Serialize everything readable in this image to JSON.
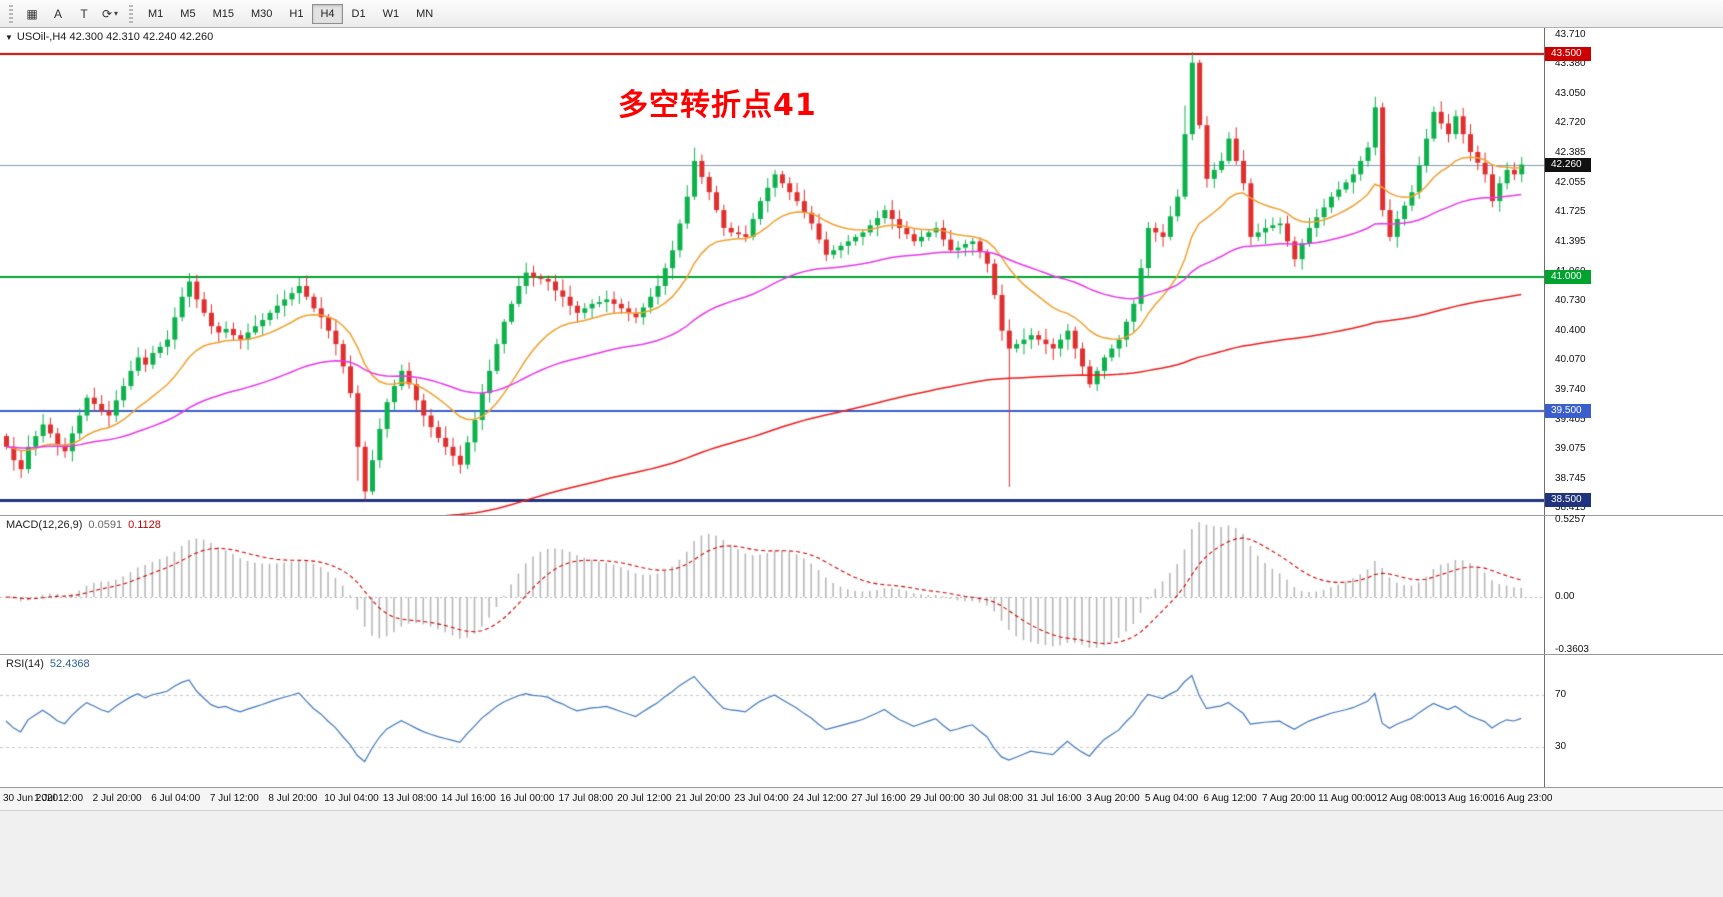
{
  "toolbar": {
    "grid_glyph": "▦",
    "a_label": "A",
    "t_label": "T",
    "cycle_glyph": "⟳",
    "caret_glyph": "▾",
    "timeframes": [
      "M1",
      "M5",
      "M15",
      "M30",
      "H1",
      "H4",
      "D1",
      "W1",
      "MN"
    ],
    "active_timeframe": "H4"
  },
  "chart": {
    "dropdown_glyph": "▼",
    "title": "USOil-,H4 42.300 42.310 42.240 42.260",
    "annotation": "多空转折点41",
    "annotation_color": "#ff0000",
    "price_axis_ticks": [
      "43.710",
      "43.380",
      "43.050",
      "42.720",
      "42.385",
      "42.055",
      "41.725",
      "41.395",
      "41.060",
      "40.730",
      "40.400",
      "40.070",
      "39.740",
      "39.405",
      "39.075",
      "38.745",
      "38.415"
    ],
    "levels": [
      {
        "label": "43.500",
        "price": 43.5,
        "color": "#cc0000",
        "width": 2
      },
      {
        "label": "41.000",
        "price": 41.0,
        "color": "#00a32e",
        "width": 2
      },
      {
        "label": "39.500",
        "price": 39.5,
        "color": "#3a5fcd",
        "width": 2
      },
      {
        "label": "38.500",
        "price": 38.5,
        "color": "#20337f",
        "width": 3
      }
    ],
    "current_price": {
      "label": "42.260",
      "price": 42.26,
      "line_color": "#7f9db9",
      "badge_color": "#111111"
    },
    "candle_up_color": "#0db24d",
    "candle_down_color": "#e02f2f"
  },
  "chart_data": {
    "type": "candlestick",
    "symbol": "USOil-",
    "timeframe": "H4",
    "closes": [
      39.1,
      38.95,
      38.85,
      39.1,
      39.22,
      39.35,
      39.25,
      39.12,
      39.05,
      39.25,
      39.45,
      39.65,
      39.58,
      39.5,
      39.45,
      39.62,
      39.78,
      39.95,
      40.1,
      40.02,
      40.15,
      40.22,
      40.3,
      40.55,
      40.78,
      40.95,
      40.75,
      40.6,
      40.45,
      40.38,
      40.42,
      40.35,
      40.3,
      40.38,
      40.45,
      40.52,
      40.6,
      40.68,
      40.75,
      40.82,
      40.9,
      40.78,
      40.65,
      40.55,
      40.4,
      40.25,
      40.0,
      39.7,
      39.1,
      38.6,
      38.95,
      39.3,
      39.6,
      39.78,
      39.95,
      39.8,
      39.62,
      39.45,
      39.32,
      39.2,
      39.1,
      39.0,
      38.9,
      39.15,
      39.4,
      39.7,
      39.95,
      40.25,
      40.5,
      40.7,
      40.9,
      41.05,
      41.0,
      40.98,
      40.95,
      40.85,
      40.78,
      40.68,
      40.6,
      40.65,
      40.7,
      40.72,
      40.75,
      40.7,
      40.65,
      40.6,
      40.55,
      40.66,
      40.78,
      40.9,
      41.1,
      41.3,
      41.6,
      41.9,
      42.3,
      42.12,
      41.95,
      41.75,
      41.55,
      41.5,
      41.48,
      41.45,
      41.65,
      41.85,
      42.0,
      42.15,
      42.05,
      41.95,
      41.85,
      41.72,
      41.6,
      41.42,
      41.25,
      41.3,
      41.35,
      41.4,
      41.45,
      41.5,
      41.58,
      41.66,
      41.75,
      41.65,
      41.55,
      41.48,
      41.4,
      41.45,
      41.5,
      41.55,
      41.42,
      41.3,
      41.33,
      41.37,
      41.4,
      41.28,
      41.15,
      40.8,
      40.4,
      40.2,
      40.25,
      40.3,
      40.35,
      40.3,
      40.25,
      40.2,
      40.3,
      40.4,
      40.2,
      40.0,
      39.8,
      39.95,
      40.1,
      40.2,
      40.3,
      40.5,
      40.7,
      41.1,
      41.55,
      41.5,
      41.45,
      41.68,
      41.9,
      42.6,
      43.4,
      42.7,
      42.1,
      42.2,
      42.3,
      42.55,
      42.3,
      42.05,
      41.45,
      41.5,
      41.55,
      41.58,
      41.6,
      41.4,
      41.2,
      41.38,
      41.55,
      41.67,
      41.78,
      41.9,
      41.98,
      42.06,
      42.15,
      42.3,
      42.45,
      42.9,
      41.75,
      41.45,
      41.65,
      41.8,
      41.95,
      42.25,
      42.55,
      42.85,
      42.72,
      42.6,
      42.8,
      42.6,
      42.4,
      42.28,
      42.15,
      41.85,
      42.05,
      42.2,
      42.15,
      42.26
    ],
    "wicks": {
      "48": {
        "low": 38.72
      },
      "49": {
        "low": 38.5
      },
      "94": {
        "high": 42.45
      },
      "137": {
        "low": 38.65
      },
      "161": {
        "high": 42.92
      },
      "162": {
        "high": 43.52
      },
      "187": {
        "high": 43.02
      }
    },
    "moving_averages": [
      {
        "name": "ma-fast",
        "color": "#f0a030",
        "period": 16
      },
      {
        "name": "ma-medium",
        "color": "#e838e8",
        "period": 55
      },
      {
        "name": "ma-slow",
        "color": "#ee1c1c",
        "period": 200,
        "seed": 37
      }
    ],
    "time_labels": [
      "30 Jun 2020",
      "1 Jul 12:00",
      "2 Jul 20:00",
      "6 Jul 04:00",
      "7 Jul 12:00",
      "8 Jul 20:00",
      "10 Jul 04:00",
      "13 Jul 08:00",
      "14 Jul 16:00",
      "16 Jul 00:00",
      "17 Jul 08:00",
      "20 Jul 12:00",
      "21 Jul 20:00",
      "23 Jul 04:00",
      "24 Jul 12:00",
      "27 Jul 16:00",
      "29 Jul 00:00",
      "30 Jul 08:00",
      "31 Jul 16:00",
      "3 Aug 20:00",
      "5 Aug 04:00",
      "6 Aug 12:00",
      "7 Aug 20:00",
      "11 Aug 00:00",
      "12 Aug 08:00",
      "13 Aug 16:00",
      "16 Aug 23:00"
    ]
  },
  "macd": {
    "label": "MACD(12,26,9)",
    "values": [
      "0.0591",
      "0.1128"
    ],
    "axis": [
      "0.5257",
      "0.00",
      "-0.3603"
    ],
    "histogram_color": "#b8b8b8",
    "signal_color": "#d40000",
    "fast": 12,
    "slow": 26,
    "signal": 9
  },
  "rsi": {
    "label": "RSI(14)",
    "value": "52.4368",
    "levels": [
      "70",
      "30"
    ],
    "line_color": "#4178be",
    "period": 14
  }
}
